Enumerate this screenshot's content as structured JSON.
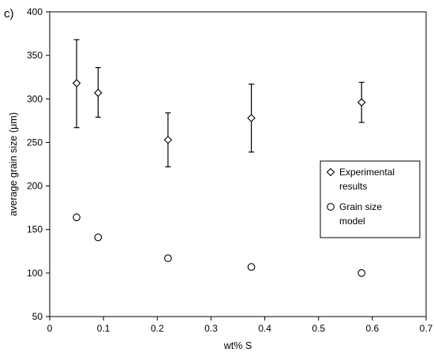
{
  "panel_label": "c)",
  "chart_data": {
    "type": "scatter",
    "xlabel": "wt% S",
    "ylabel": "average grain size (μm)",
    "xlim": [
      0,
      0.7
    ],
    "ylim": [
      50,
      400
    ],
    "x_ticks": [
      "0",
      "0.1",
      "0.2",
      "0.3",
      "0.4",
      "0.5",
      "0.6",
      "0.7"
    ],
    "y_ticks": [
      "50",
      "100",
      "150",
      "200",
      "250",
      "300",
      "350",
      "400"
    ],
    "grid": false,
    "legend_position": "right",
    "series": [
      {
        "name": "Experimental results",
        "marker": "diamond",
        "color": "#000000",
        "points": [
          {
            "x": 0.05,
            "y": 318,
            "err_low": 267,
            "err_high": 368
          },
          {
            "x": 0.09,
            "y": 307,
            "err_low": 279,
            "err_high": 336
          },
          {
            "x": 0.22,
            "y": 253,
            "err_low": 222,
            "err_high": 284
          },
          {
            "x": 0.375,
            "y": 278,
            "err_low": 239,
            "err_high": 317
          },
          {
            "x": 0.58,
            "y": 296,
            "err_low": 273,
            "err_high": 319
          }
        ]
      },
      {
        "name": "Grain size model",
        "marker": "circle",
        "color": "#000000",
        "points": [
          {
            "x": 0.05,
            "y": 164
          },
          {
            "x": 0.09,
            "y": 141
          },
          {
            "x": 0.22,
            "y": 117
          },
          {
            "x": 0.375,
            "y": 107
          },
          {
            "x": 0.58,
            "y": 100
          }
        ]
      }
    ],
    "legend": {
      "entries": [
        {
          "marker": "diamond",
          "lines": [
            "Experimental",
            "results"
          ]
        },
        {
          "marker": "circle",
          "lines": [
            "Grain size",
            "model"
          ]
        }
      ]
    }
  }
}
